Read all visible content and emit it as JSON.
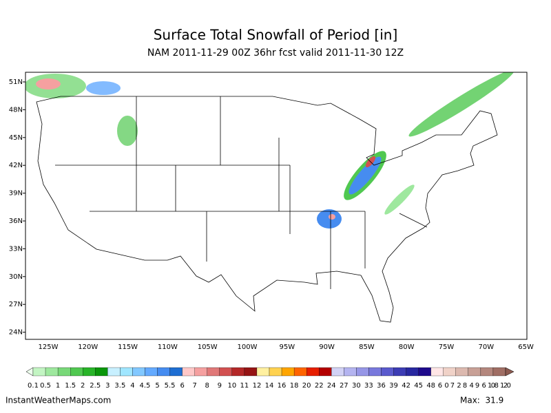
{
  "title": "Surface Total Snowfall of Period [in]",
  "subtitle": "NAM 2011-11-29 00Z 36hr fcst valid 2011-11-30 12Z",
  "map": {
    "lat_labels": [
      "51N",
      "48N",
      "45N",
      "42N",
      "39N",
      "36N",
      "33N",
      "30N",
      "27N",
      "24N"
    ],
    "lon_labels": [
      "125W",
      "120W",
      "115W",
      "110W",
      "105W",
      "100W",
      "95W",
      "90W",
      "85W",
      "80W",
      "75W",
      "70W",
      "65W"
    ]
  },
  "colorbar": {
    "labels": [
      0.1,
      0.5,
      1,
      1.5,
      2,
      2.5,
      3,
      3.5,
      4,
      4.5,
      5,
      5.5,
      6,
      7,
      8,
      9,
      10,
      11,
      12,
      14,
      16,
      18,
      20,
      22,
      24,
      27,
      30,
      33,
      36,
      39,
      42,
      45,
      48,
      60,
      72,
      84,
      96,
      108,
      120
    ],
    "colors": [
      "#eeffee",
      "#c3f5c3",
      "#9ee89e",
      "#78d878",
      "#50c850",
      "#28b428",
      "#0a960a",
      "#c8f0ff",
      "#a0e6ff",
      "#82c8ff",
      "#64aaff",
      "#468cf0",
      "#1e6ed2",
      "#ffc8c8",
      "#f5a0a0",
      "#e07878",
      "#d25050",
      "#b42828",
      "#961414",
      "#fff0a0",
      "#ffd250",
      "#ffa500",
      "#ff6400",
      "#e61e00",
      "#b40000",
      "#d2d2f5",
      "#b4b4f0",
      "#9696e6",
      "#7878dc",
      "#5a5acd",
      "#3c3cb4",
      "#2828a0",
      "#1e0a8c",
      "#ffe6e6",
      "#f0d2c8",
      "#dcb9af",
      "#c8a096",
      "#b4877d",
      "#a06e64",
      "#8c5a50"
    ]
  },
  "footer": {
    "source": "InstantWeatherMaps.com",
    "max": "Max:  31.9"
  }
}
